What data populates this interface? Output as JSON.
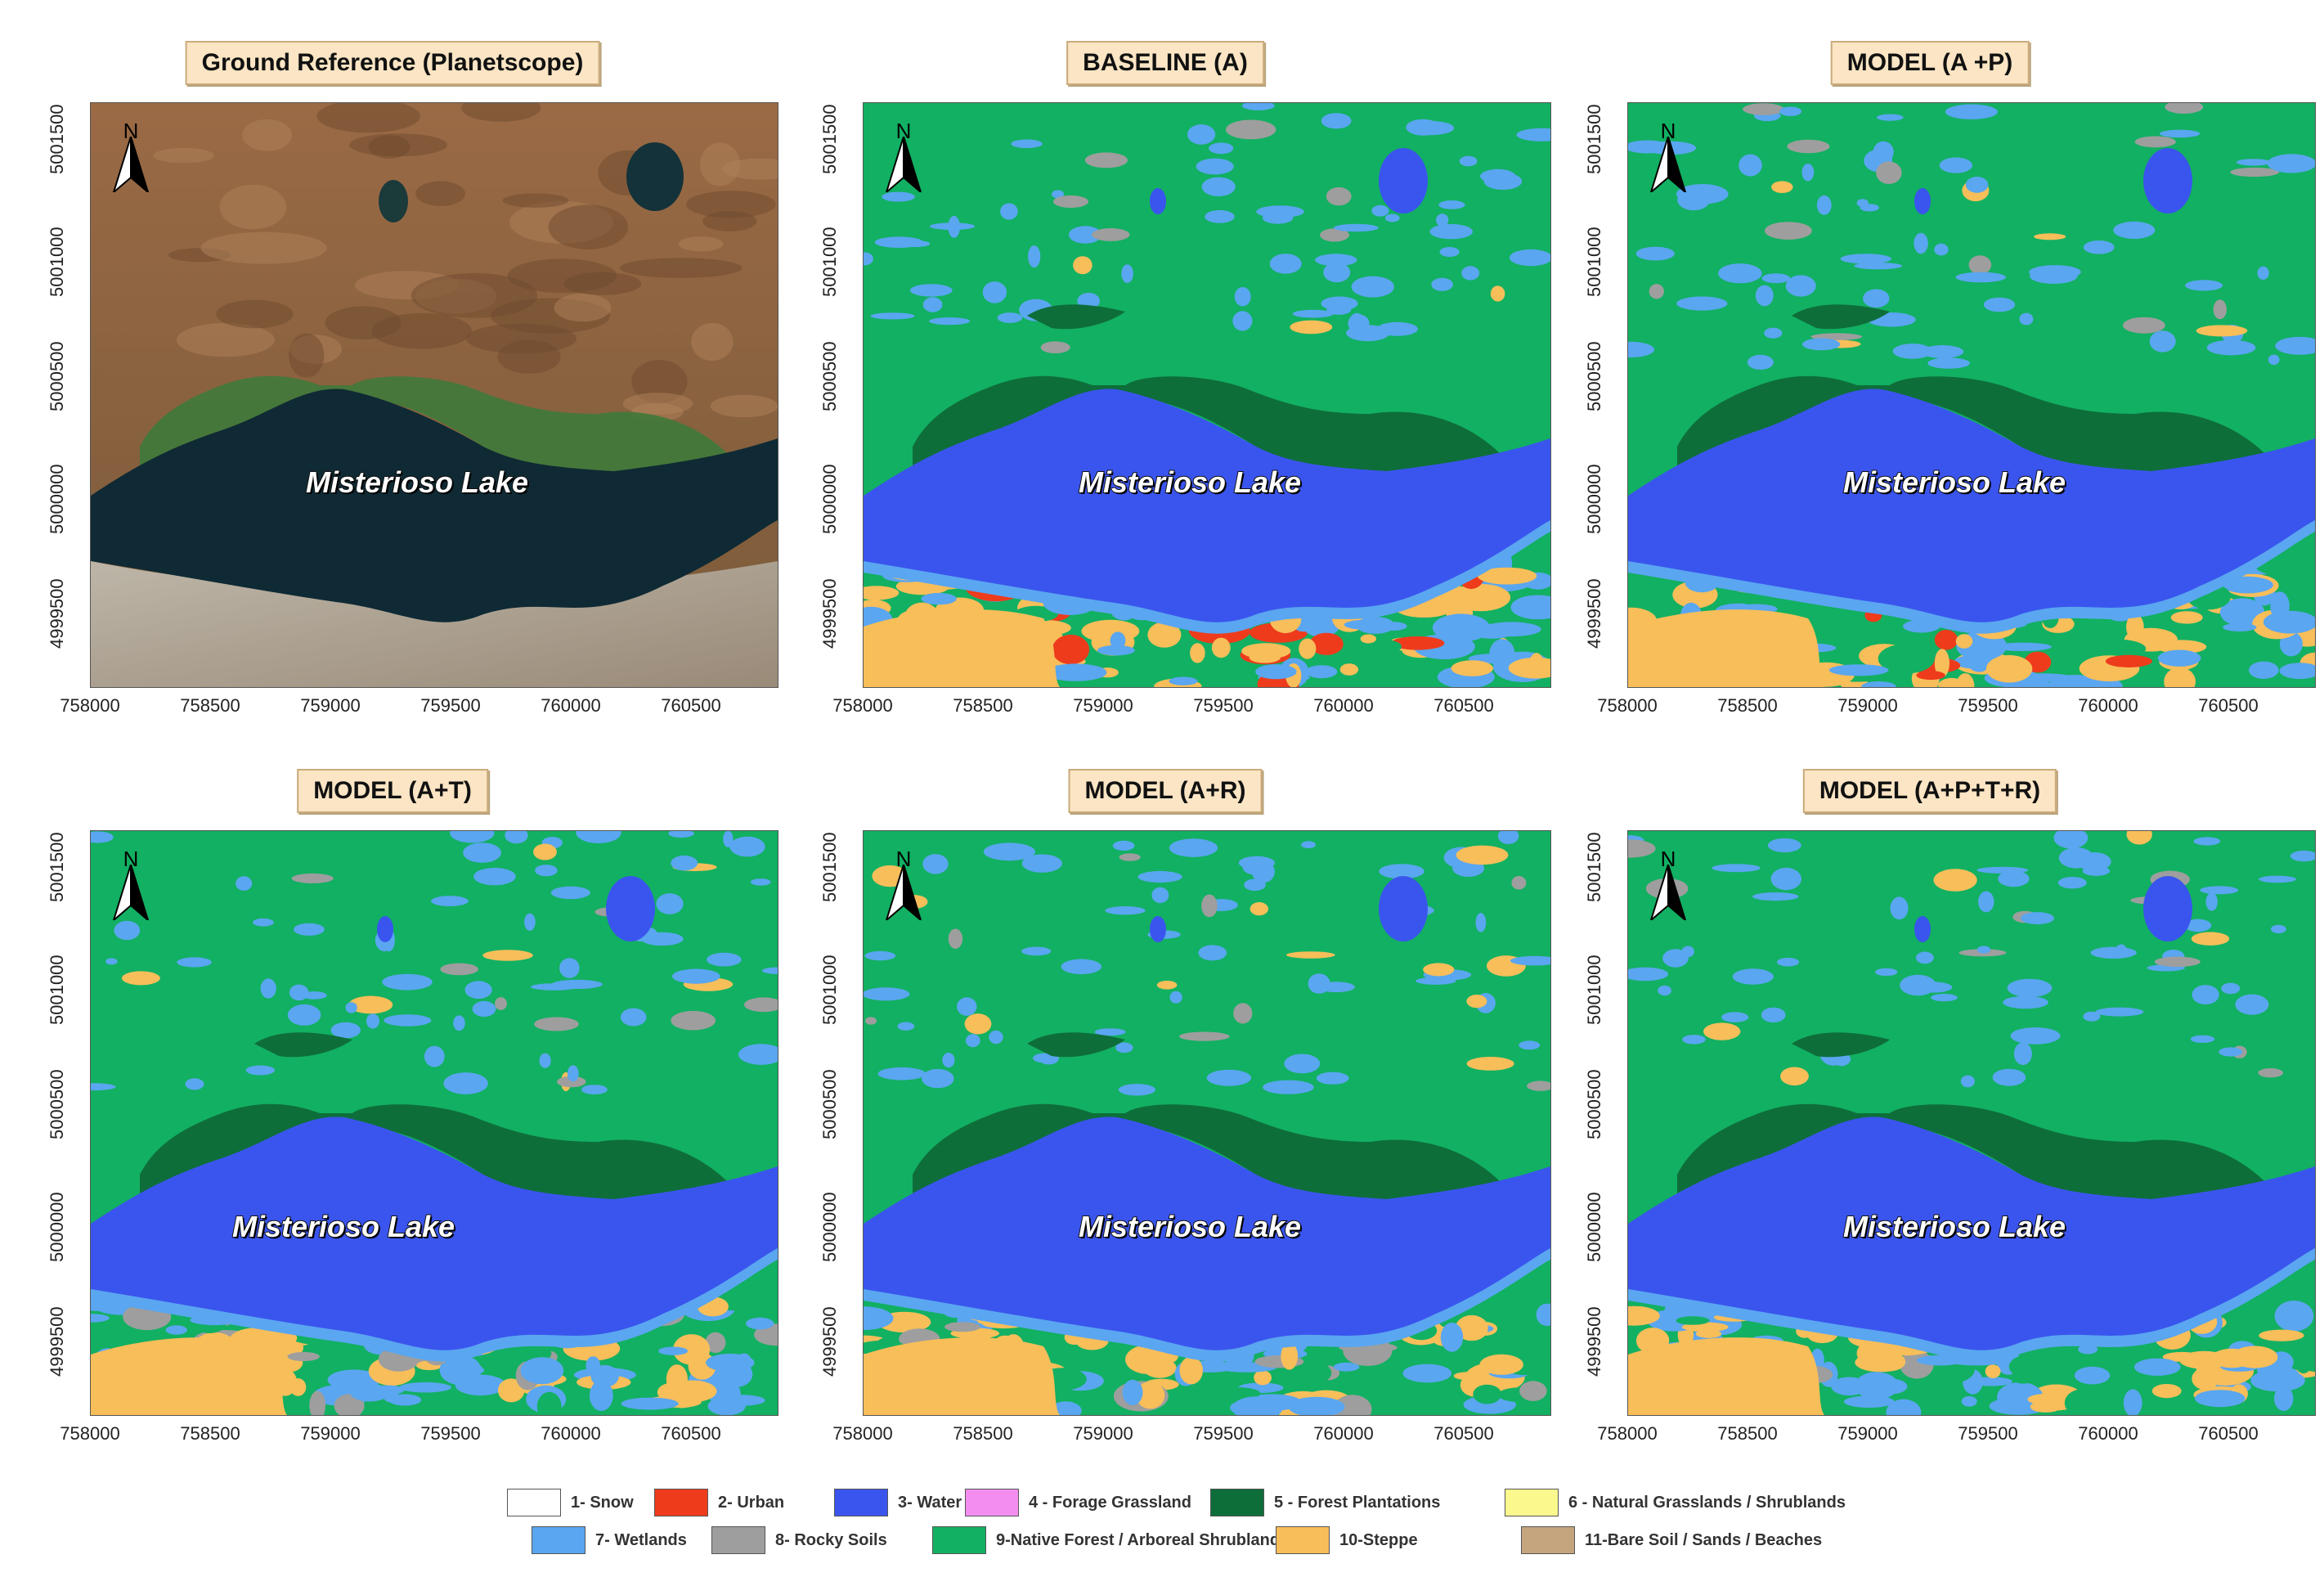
{
  "panels": [
    {
      "title": "Ground Reference (Planetscope)",
      "type": "satellite"
    },
    {
      "title": "BASELINE  (A)",
      "type": "classified"
    },
    {
      "title": "MODEL (A +P)",
      "type": "classified"
    },
    {
      "title": "MODEL (A+T)",
      "type": "classified"
    },
    {
      "title": "MODEL (A+R)",
      "type": "classified"
    },
    {
      "title": "MODEL (A+P+T+R)",
      "type": "classified"
    }
  ],
  "lake_label": "Misterioso Lake",
  "north_label": "N",
  "x_ticks": [
    "758000",
    "758500",
    "759000",
    "759500",
    "760000",
    "760500"
  ],
  "y_ticks": [
    "5001500",
    "5001000",
    "5000500",
    "5000000",
    "4999500"
  ],
  "legend": [
    {
      "label": "1- Snow",
      "color": "#ffffff"
    },
    {
      "label": "2- Urban",
      "color": "#ee3b1c"
    },
    {
      "label": "3- Water",
      "color": "#3a55ee"
    },
    {
      "label": "4 - Forage Grassland",
      "color": "#f38ef0"
    },
    {
      "label": "5 - Forest Plantations",
      "color": "#0e6e3a"
    },
    {
      "label": "6 - Natural Grasslands / Shrublands",
      "color": "#fbf98e"
    },
    {
      "label": "7- Wetlands",
      "color": "#5aa6f0"
    },
    {
      "label": "8- Rocky Soils",
      "color": "#9e9e9e"
    },
    {
      "label": "9-Native Forest / Arboreal Shrublands",
      "color": "#12b062"
    },
    {
      "label": "10-Steppe",
      "color": "#f7be5a"
    },
    {
      "label": "11-Bare Soil / Sands / Beaches",
      "color": "#c4a57e"
    }
  ]
}
